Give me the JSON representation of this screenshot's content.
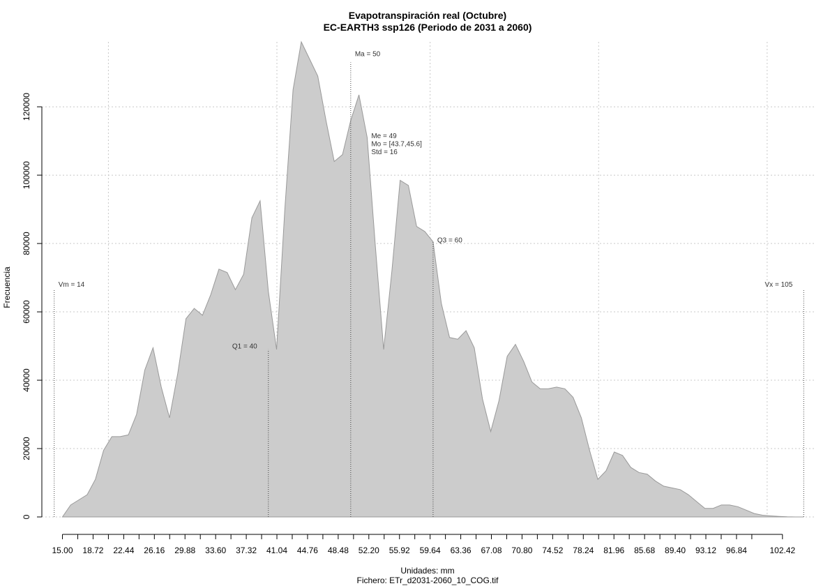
{
  "chart_data": {
    "type": "area",
    "title": "Evapotranspiración real (Octubre)",
    "subtitle": "EC-EARTH3 ssp126 (Periodo de 2031 a 2060)",
    "xlabel": "Unidades: mm",
    "caption": "Fichero: ETr_d2031-2060_10_COG.tif",
    "ylabel": "Frecuencia",
    "xlim": [
      12.5,
      106.5
    ],
    "ylim": [
      0,
      139000
    ],
    "grid": true,
    "fill_color": "#cccccc",
    "line_color": "#999999",
    "x_ticks": [
      15.0,
      16.86,
      18.72,
      20.58,
      22.44,
      24.3,
      26.16,
      28.02,
      29.88,
      31.74,
      33.6,
      35.46,
      37.32,
      39.18,
      41.04,
      42.9,
      44.76,
      46.62,
      48.48,
      50.34,
      52.2,
      54.06,
      55.92,
      57.78,
      59.64,
      61.5,
      63.36,
      65.22,
      67.08,
      68.94,
      70.8,
      72.66,
      74.52,
      76.38,
      78.24,
      80.1,
      81.96,
      83.82,
      85.68,
      87.54,
      89.4,
      91.26,
      93.12,
      94.98,
      96.84,
      98.7,
      102.42
    ],
    "x_tick_labels": [
      "15.00",
      "18.72",
      "22.44",
      "26.16",
      "29.88",
      "33.60",
      "37.32",
      "41.04",
      "44.76",
      "48.48",
      "52.20",
      "55.92",
      "59.64",
      "63.36",
      "67.08",
      "70.80",
      "74.52",
      "78.24",
      "81.96",
      "85.68",
      "89.40",
      "93.12",
      "96.84",
      "102.42"
    ],
    "x_tick_label_values": [
      15.0,
      18.72,
      22.44,
      26.16,
      29.88,
      33.6,
      37.32,
      41.04,
      44.76,
      48.48,
      52.2,
      55.92,
      59.64,
      63.36,
      67.08,
      70.8,
      74.52,
      78.24,
      81.96,
      85.68,
      89.4,
      93.12,
      96.84,
      102.42
    ],
    "y_ticks": [
      0,
      20000,
      40000,
      60000,
      80000,
      100000,
      120000
    ],
    "y_tick_labels": [
      "0",
      "20000",
      "40000",
      "60000",
      "80000",
      "100000",
      "120000"
    ],
    "x_grid": [
      20.58,
      41.04,
      59.64,
      80.1,
      100.56
    ],
    "x": [
      15.0,
      16.0,
      17.0,
      18.0,
      19.0,
      20.0,
      21.0,
      22.0,
      23.0,
      24.0,
      25.0,
      26.0,
      27.0,
      28.0,
      29.0,
      30.0,
      31.0,
      32.0,
      33.0,
      34.0,
      35.0,
      36.0,
      37.0,
      38.0,
      39.0,
      40.0,
      41.0,
      42.0,
      43.0,
      44.0,
      45.0,
      46.0,
      47.0,
      48.0,
      49.0,
      50.0,
      51.0,
      52.0,
      53.0,
      54.0,
      55.0,
      56.0,
      57.0,
      58.0,
      59.0,
      60.0,
      61.0,
      62.0,
      63.0,
      64.0,
      65.0,
      66.0,
      67.0,
      68.0,
      69.0,
      70.0,
      71.0,
      72.0,
      73.0,
      74.0,
      75.0,
      76.0,
      77.0,
      78.0,
      79.0,
      80.0,
      81.0,
      82.0,
      83.0,
      84.0,
      85.0,
      86.0,
      87.0,
      88.0,
      89.0,
      90.0,
      91.0,
      92.0,
      93.0,
      94.0,
      95.0,
      96.0,
      97.0,
      98.0,
      99.0,
      100.0,
      101.0,
      102.0,
      103.0,
      104.0,
      105.0
    ],
    "y": [
      0,
      3500,
      5000,
      6500,
      11000,
      19500,
      23500,
      23500,
      24000,
      30000,
      43000,
      49500,
      38000,
      29000,
      42000,
      58000,
      61000,
      59000,
      65000,
      72500,
      71500,
      66500,
      71000,
      87500,
      92500,
      66000,
      49000,
      90000,
      125000,
      139000,
      134000,
      129000,
      116000,
      104000,
      106000,
      116000,
      123500,
      111000,
      79000,
      49000,
      72000,
      98500,
      97000,
      85000,
      83500,
      80500,
      62500,
      52500,
      52000,
      54500,
      49500,
      34500,
      25000,
      34000,
      47000,
      50500,
      45500,
      39500,
      37500,
      37500,
      38000,
      37500,
      35000,
      29000,
      19500,
      11000,
      13500,
      19000,
      18000,
      14500,
      13000,
      12500,
      10500,
      9000,
      8500,
      8000,
      6500,
      4500,
      2500,
      2500,
      3500,
      3500,
      3000,
      2000,
      1000,
      500,
      300,
      150,
      50,
      10,
      0
    ],
    "annotations": [
      {
        "label": "Vm = 14",
        "x": 14.0,
        "line_top": 66500,
        "text_y": 66500,
        "anchor": "left"
      },
      {
        "label": "Q1 = 40",
        "x": 40.0,
        "line_top": 49000,
        "text_y": 48500,
        "anchor": "right"
      },
      {
        "label": "Ma = 50",
        "x": 50.0,
        "line_top": 133000,
        "text_y": 134000,
        "anchor": "left"
      },
      {
        "label": "Q3 = 60",
        "x": 60.0,
        "line_top": 80500,
        "text_y": 79500,
        "anchor": "left"
      },
      {
        "label": "Vx = 105",
        "x": 105.0,
        "line_top": 66500,
        "text_y": 66500,
        "anchor": "right"
      }
    ],
    "stats_block": {
      "x": 52.5,
      "y": 110000,
      "lines": [
        "Me = 49",
        "Mo = [43.7,45.6]",
        "Std = 16"
      ]
    }
  }
}
